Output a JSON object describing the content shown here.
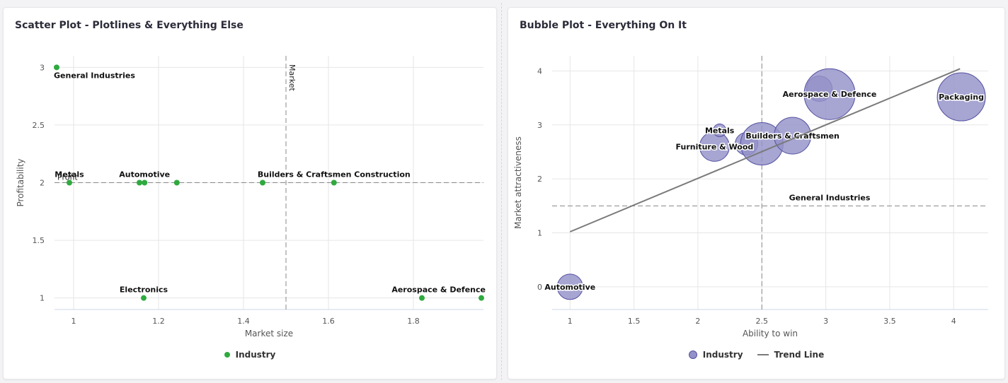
{
  "charts": [
    {
      "title": "Scatter Plot - Plotlines & Everything Else",
      "legend": [
        {
          "label": "Industry",
          "color": "#2eaa3e",
          "kind": "dot"
        }
      ]
    },
    {
      "title": "Bubble Plot - Everything On It",
      "legend": [
        {
          "label": "Industry",
          "color": "#9491c8",
          "kind": "bubble"
        },
        {
          "label": "Trend Line",
          "color": "#7a7a7a",
          "kind": "line"
        }
      ]
    }
  ],
  "chart_data": [
    {
      "type": "scatter",
      "title": "Scatter Plot - Plotlines & Everything Else",
      "xlabel": "Market size",
      "ylabel": "Profitability",
      "xlim": [
        0.955,
        1.965
      ],
      "ylim": [
        0.9,
        3.1
      ],
      "xticks": [
        1,
        1.2,
        1.4,
        1.6,
        1.8
      ],
      "xtick_labels": [
        "1",
        "1.2",
        "1.4",
        "1.6",
        "1.8"
      ],
      "yticks": [
        1,
        1.5,
        2,
        2.5,
        3
      ],
      "ytick_labels": [
        "1",
        "1.5",
        "2",
        "2.5",
        "3"
      ],
      "grid": true,
      "legend_position": "bottom-center",
      "series": [
        {
          "name": "Industry",
          "color": "#2eaa3e",
          "points": [
            {
              "x": 0.96,
              "y": 3,
              "label": "General Industries"
            },
            {
              "x": 0.99,
              "y": 2,
              "label": "Metals"
            },
            {
              "x": 1.155,
              "y": 2,
              "label": ""
            },
            {
              "x": 1.167,
              "y": 2,
              "label": "Automotive"
            },
            {
              "x": 1.243,
              "y": 2,
              "label": ""
            },
            {
              "x": 1.445,
              "y": 2,
              "label": ""
            },
            {
              "x": 1.613,
              "y": 2,
              "label": "Builders & Craftsmen Construction"
            },
            {
              "x": 1.165,
              "y": 1,
              "label": "Electronics"
            },
            {
              "x": 1.82,
              "y": 1,
              "label": ""
            },
            {
              "x": 1.96,
              "y": 1,
              "label": "Aerospace & Defence"
            }
          ]
        }
      ],
      "plotlines": [
        {
          "axis": "x",
          "value": 1.5,
          "label": "Market",
          "style": "dashed"
        },
        {
          "axis": "y",
          "value": 2,
          "label": "Profit",
          "style": "dashed"
        }
      ]
    },
    {
      "type": "bubble",
      "title": "Bubble Plot - Everything On It",
      "xlabel": "Ability to win",
      "ylabel": "Market attractiveness",
      "xlim": [
        0.86,
        4.27
      ],
      "ylim": [
        -0.42,
        4.28
      ],
      "xticks": [
        1,
        1.5,
        2,
        2.5,
        3,
        3.5,
        4
      ],
      "xtick_labels": [
        "1",
        "1.5",
        "2",
        "2.5",
        "3",
        "3.5",
        "4"
      ],
      "yticks": [
        0,
        1,
        2,
        3,
        4
      ],
      "ytick_labels": [
        "0",
        "1",
        "2",
        "3",
        "4"
      ],
      "grid": true,
      "legend_position": "bottom-center",
      "series": [
        {
          "name": "Industry",
          "color": "#9491c8",
          "points": [
            {
              "x": 1.0,
              "y": 0.0,
              "size": 18,
              "label": "Automotive"
            },
            {
              "x": 2.13,
              "y": 2.6,
              "size": 21,
              "label": "Furniture & Wood"
            },
            {
              "x": 2.17,
              "y": 2.9,
              "size": 9,
              "label": "Metals"
            },
            {
              "x": 2.38,
              "y": 2.65,
              "size": 16,
              "label": ""
            },
            {
              "x": 2.5,
              "y": 2.65,
              "size": 30,
              "label": ""
            },
            {
              "x": 2.74,
              "y": 2.8,
              "size": 26,
              "label": "Builders & Craftsmen"
            },
            {
              "x": 2.95,
              "y": 3.67,
              "size": 18,
              "label": ""
            },
            {
              "x": 3.03,
              "y": 3.57,
              "size": 36,
              "label": "Aerospace & Defence"
            },
            {
              "x": 3.03,
              "y": 1.5,
              "size": 0,
              "label": "General Industries"
            },
            {
              "x": 4.06,
              "y": 3.52,
              "size": 34,
              "label": "Packaging"
            }
          ]
        },
        {
          "name": "Trend Line",
          "type": "line",
          "color": "#7a7a7a",
          "points": [
            {
              "x": 1.0,
              "y": 1.02
            },
            {
              "x": 4.05,
              "y": 4.04
            }
          ]
        }
      ],
      "plotlines": [
        {
          "axis": "x",
          "value": 2.5,
          "label": "",
          "style": "dashed"
        },
        {
          "axis": "y",
          "value": 1.5,
          "label": "",
          "style": "dashed"
        }
      ]
    }
  ]
}
